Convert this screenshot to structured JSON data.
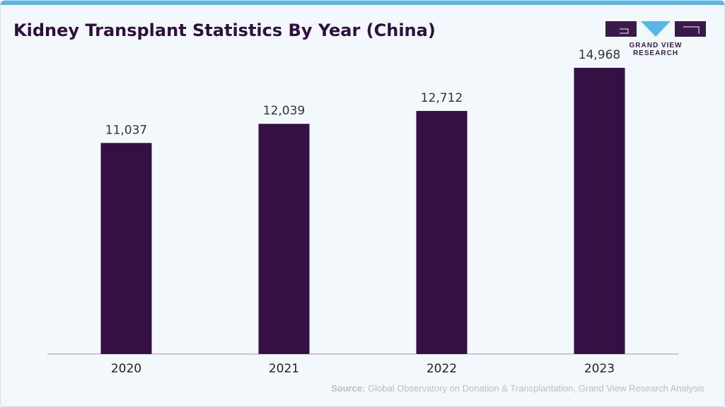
{
  "title": "Kidney Transplant Statistics By Year (China)",
  "brand": {
    "name": "GRAND VIEW RESEARCH",
    "colors": {
      "dark": "#3a1a4a",
      "light": "#55b8e8"
    }
  },
  "source": {
    "label": "Source:",
    "text": "Global Observatory on Donation & Transplantation, Grand View Research Analysis"
  },
  "chart_data": {
    "type": "bar",
    "categories": [
      "2020",
      "2021",
      "2022",
      "2023"
    ],
    "values": [
      11037,
      12039,
      12712,
      14968
    ],
    "value_labels": [
      "11,037",
      "12,039",
      "12,712",
      "14,968"
    ],
    "title": "Kidney Transplant Statistics By Year (China)",
    "xlabel": "",
    "ylabel": "",
    "ylim": [
      0,
      17000
    ],
    "grid": false,
    "legend": "none",
    "bar_color": "#351045"
  }
}
